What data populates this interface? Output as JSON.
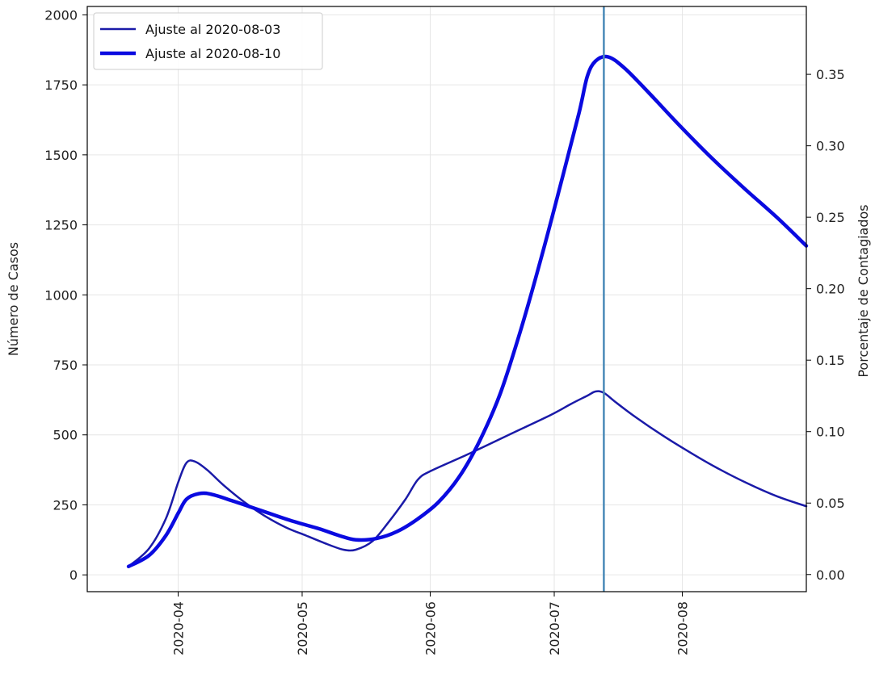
{
  "chart_data": {
    "type": "line",
    "ylabel": "Número de Casos",
    "ylabel_right": "Porcentaje de Contagiados",
    "ylim": [
      -60,
      2030
    ],
    "ylim_right": [
      -0.012,
      0.3975
    ],
    "xlim": [
      "2020-03-10",
      "2020-08-31"
    ],
    "x_ticks": [
      "2020-04-01",
      "2020-05-01",
      "2020-06-01",
      "2020-07-01",
      "2020-08-01"
    ],
    "x_tick_labels": [
      "2020-04",
      "2020-05",
      "2020-06",
      "2020-07",
      "2020-08"
    ],
    "y_ticks": [
      0,
      250,
      500,
      750,
      1000,
      1250,
      1500,
      1750,
      2000
    ],
    "y_tick_labels": [
      "0",
      "250",
      "500",
      "750",
      "1000",
      "1250",
      "1500",
      "1750",
      "2000"
    ],
    "y_right_ticks": [
      0.0,
      0.05,
      0.1,
      0.15,
      0.2,
      0.25,
      0.3,
      0.35
    ],
    "y_right_tick_labels": [
      "0.00",
      "0.05",
      "0.10",
      "0.15",
      "0.20",
      "0.25",
      "0.30",
      "0.35"
    ],
    "grid": true,
    "legend_position": "top-left",
    "vertical_line": {
      "x": "2020-07-13",
      "color": "#4a8ab8"
    },
    "series": [
      {
        "name": "Ajuste al 2020-08-03",
        "color": "#1a1aa8",
        "width": 2.5,
        "points": [
          [
            "2020-03-20",
            30
          ],
          [
            "2020-03-25",
            95
          ],
          [
            "2020-03-29",
            200
          ],
          [
            "2020-04-01",
            330
          ],
          [
            "2020-04-03",
            400
          ],
          [
            "2020-04-05",
            405
          ],
          [
            "2020-04-08",
            375
          ],
          [
            "2020-04-12",
            320
          ],
          [
            "2020-04-17",
            260
          ],
          [
            "2020-04-22",
            210
          ],
          [
            "2020-04-27",
            170
          ],
          [
            "2020-05-02",
            140
          ],
          [
            "2020-05-07",
            110
          ],
          [
            "2020-05-11",
            90
          ],
          [
            "2020-05-14",
            90
          ],
          [
            "2020-05-18",
            120
          ],
          [
            "2020-05-22",
            190
          ],
          [
            "2020-05-26",
            270
          ],
          [
            "2020-05-29",
            340
          ],
          [
            "2020-06-01",
            370
          ],
          [
            "2020-06-10",
            430
          ],
          [
            "2020-06-20",
            500
          ],
          [
            "2020-06-30",
            570
          ],
          [
            "2020-07-05",
            610
          ],
          [
            "2020-07-09",
            640
          ],
          [
            "2020-07-11",
            655
          ],
          [
            "2020-07-13",
            650
          ],
          [
            "2020-07-16",
            615
          ],
          [
            "2020-07-21",
            560
          ],
          [
            "2020-07-27",
            500
          ],
          [
            "2020-08-02",
            445
          ],
          [
            "2020-08-09",
            385
          ],
          [
            "2020-08-17",
            325
          ],
          [
            "2020-08-24",
            280
          ],
          [
            "2020-08-31",
            245
          ]
        ]
      },
      {
        "name": "Ajuste al 2020-08-10",
        "color": "#0a0ae0",
        "width": 4.5,
        "points": [
          [
            "2020-03-20",
            30
          ],
          [
            "2020-03-25",
            70
          ],
          [
            "2020-03-29",
            140
          ],
          [
            "2020-04-01",
            220
          ],
          [
            "2020-04-03",
            270
          ],
          [
            "2020-04-06",
            290
          ],
          [
            "2020-04-09",
            288
          ],
          [
            "2020-04-14",
            265
          ],
          [
            "2020-04-21",
            230
          ],
          [
            "2020-04-28",
            195
          ],
          [
            "2020-05-05",
            165
          ],
          [
            "2020-05-10",
            140
          ],
          [
            "2020-05-14",
            125
          ],
          [
            "2020-05-19",
            130
          ],
          [
            "2020-05-24",
            155
          ],
          [
            "2020-05-29",
            200
          ],
          [
            "2020-06-03",
            260
          ],
          [
            "2020-06-08",
            350
          ],
          [
            "2020-06-13",
            480
          ],
          [
            "2020-06-18",
            650
          ],
          [
            "2020-06-23",
            880
          ],
          [
            "2020-06-28",
            1140
          ],
          [
            "2020-07-03",
            1420
          ],
          [
            "2020-07-07",
            1650
          ],
          [
            "2020-07-09",
            1780
          ],
          [
            "2020-07-11",
            1835
          ],
          [
            "2020-07-14",
            1850
          ],
          [
            "2020-07-18",
            1810
          ],
          [
            "2020-07-24",
            1720
          ],
          [
            "2020-07-31",
            1610
          ],
          [
            "2020-08-08",
            1490
          ],
          [
            "2020-08-16",
            1380
          ],
          [
            "2020-08-24",
            1275
          ],
          [
            "2020-08-31",
            1175
          ]
        ]
      }
    ]
  }
}
